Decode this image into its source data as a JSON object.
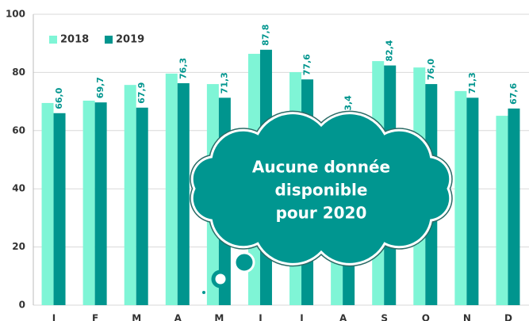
{
  "chart_data": {
    "type": "bar",
    "categories": [
      "J",
      "F",
      "M",
      "A",
      "M",
      "J",
      "J",
      "A",
      "S",
      "O",
      "N",
      "D"
    ],
    "series": [
      {
        "name": "2018",
        "color": "#7ff5d6",
        "values": [
          69.5,
          70.3,
          75.7,
          79.6,
          76.0,
          86.4,
          80.1,
          64.3,
          83.9,
          81.7,
          73.6,
          65.1
        ]
      },
      {
        "name": "2019",
        "color": "#00958e",
        "values": [
          66.0,
          69.7,
          67.9,
          76.3,
          71.3,
          87.8,
          77.6,
          63.4,
          82.4,
          76.0,
          71.3,
          67.6
        ],
        "value_labels": [
          "66,0",
          "69,7",
          "67,9",
          "76,3",
          "71,3",
          "87,8",
          "77,6",
          "63,4",
          "82,4",
          "76,0",
          "71,3",
          "67,6"
        ]
      }
    ],
    "ylim": [
      0,
      100
    ],
    "yticks": [
      0,
      20,
      40,
      60,
      80,
      100
    ],
    "grid": true,
    "legend": "top-left",
    "annotation": [
      "Aucune donnée",
      "disponible",
      "pour 2020"
    ]
  }
}
